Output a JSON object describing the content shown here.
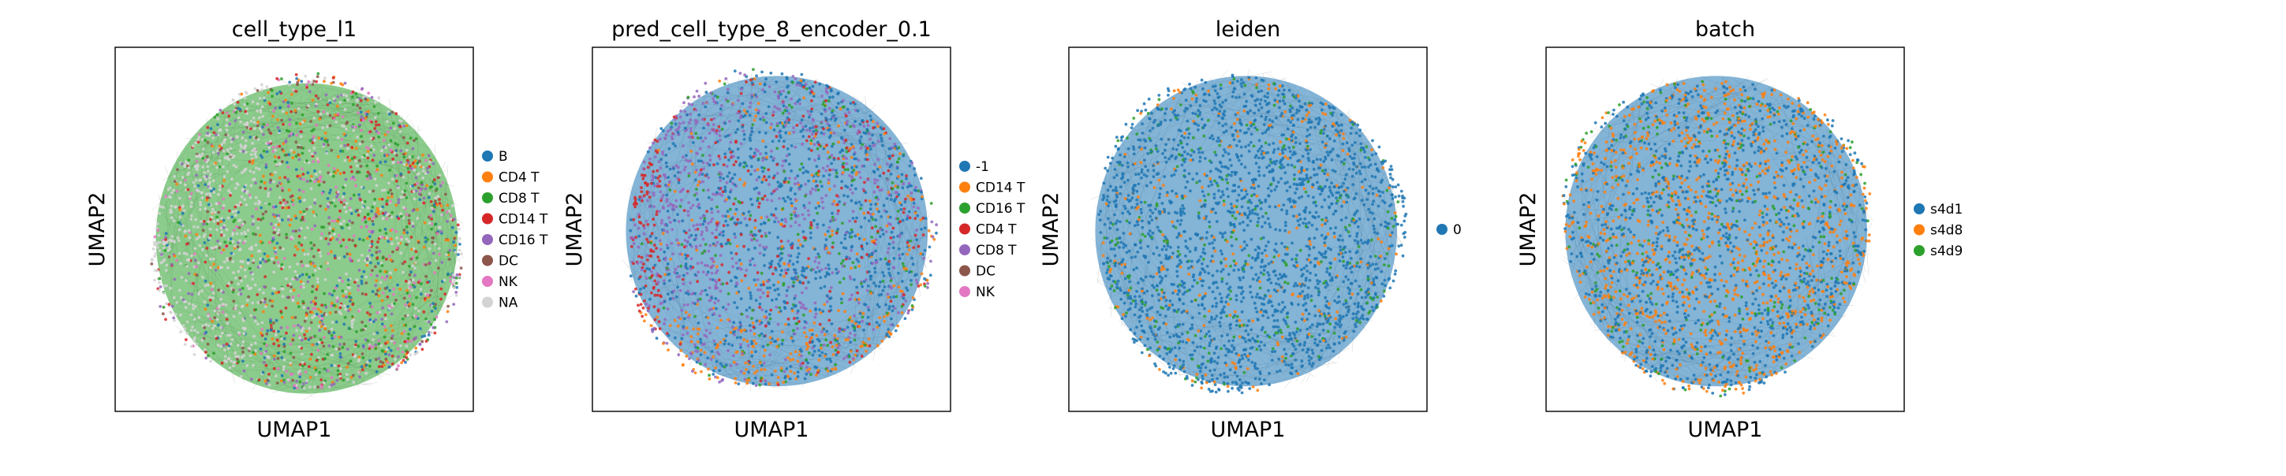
{
  "chart_data": [
    {
      "type": "scatter",
      "title": "cell_type_l1",
      "xlabel": "UMAP1",
      "ylabel": "UMAP2",
      "legend": {
        "placement": "right",
        "entries": [
          {
            "label": "B",
            "color": "#1f77b4"
          },
          {
            "label": "CD4 T",
            "color": "#ff7f0e"
          },
          {
            "label": "CD8 T",
            "color": "#2ca02c"
          },
          {
            "label": "CD14 T",
            "color": "#d62728"
          },
          {
            "label": "CD16 T",
            "color": "#9467bd"
          },
          {
            "label": "DC",
            "color": "#8c564b"
          },
          {
            "label": "NK",
            "color": "#e377c2"
          },
          {
            "label": "NA",
            "color": "#d3d3d3"
          }
        ]
      }
    },
    {
      "type": "scatter",
      "title": "pred_cell_type_8_encoder_0.1",
      "xlabel": "UMAP1",
      "ylabel": "UMAP2",
      "legend": {
        "placement": "right",
        "entries": [
          {
            "label": "-1",
            "color": "#1f77b4"
          },
          {
            "label": "CD14 T",
            "color": "#ff7f0e"
          },
          {
            "label": "CD16 T",
            "color": "#2ca02c"
          },
          {
            "label": "CD4 T",
            "color": "#d62728"
          },
          {
            "label": "CD8 T",
            "color": "#9467bd"
          },
          {
            "label": "DC",
            "color": "#8c564b"
          },
          {
            "label": "NK",
            "color": "#e377c2"
          }
        ]
      }
    },
    {
      "type": "scatter",
      "title": "leiden",
      "xlabel": "UMAP1",
      "ylabel": "UMAP2",
      "legend": {
        "placement": "right",
        "entries": [
          {
            "label": "0",
            "color": "#1f77b4"
          }
        ]
      }
    },
    {
      "type": "scatter",
      "title": "batch",
      "xlabel": "UMAP1",
      "ylabel": "UMAP2",
      "legend": {
        "placement": "right",
        "entries": [
          {
            "label": "s4d1",
            "color": "#1f77b4"
          },
          {
            "label": "s4d8",
            "color": "#ff7f0e"
          },
          {
            "label": "s4d9",
            "color": "#2ca02c"
          }
        ]
      }
    }
  ]
}
